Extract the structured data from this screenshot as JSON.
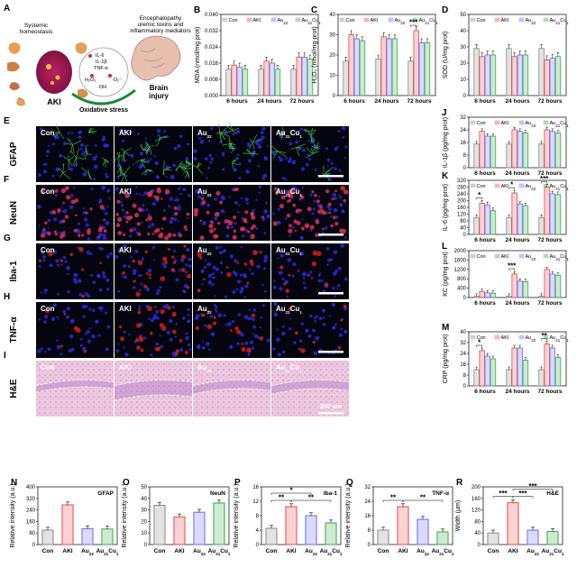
{
  "colors": {
    "Con": "#8a8a8a",
    "AKI": "#e84a4a",
    "Au22": "#6a6aff",
    "Au21Cu1": "#3aaa4a"
  },
  "groups": [
    "Con",
    "AKI",
    "Au22",
    "Au21Cu1"
  ],
  "panel_a": {
    "label": "A",
    "texts": [
      "Systemic",
      "homeostasis",
      "Encephalopathy",
      "uremic toxins and",
      "inflammatory mediators",
      "AKI",
      "Oxidative stress",
      "Brain",
      "injury",
      "IL-6",
      "IL-1β",
      "TNF-α",
      "H₂O₂",
      "·OH",
      "·O₂⁻"
    ]
  },
  "micro_panels": {
    "rows": [
      {
        "label": "E",
        "marker": "GFAP",
        "style": "gfap"
      },
      {
        "label": "F",
        "marker": "NeuN",
        "style": "neun"
      },
      {
        "label": "G",
        "marker": "Iba-1",
        "style": "iba"
      },
      {
        "label": "H",
        "marker": "TNF-α",
        "style": "tnf"
      },
      {
        "label": "I",
        "marker": "H&E",
        "style": "he"
      }
    ],
    "columns": [
      "Con",
      "AKI",
      "Au22",
      "Au21Cu1"
    ],
    "scale_label": "200 μm"
  },
  "chart_data": [
    {
      "id": "B",
      "type": "bar",
      "ylabel": "MDA (nmol/mg prot)",
      "categories": [
        "6 hours",
        "24 hours",
        "72 hours"
      ],
      "ylim": [
        0,
        0.04
      ],
      "yticks": [
        0,
        0.008,
        0.016,
        0.024,
        0.032,
        0.04
      ],
      "tick_labels": [
        "0.000",
        "0.008",
        "0.016",
        "0.024",
        "0.032",
        "0.040"
      ],
      "series": [
        {
          "name": "Con",
          "values": [
            0.013,
            0.013,
            0.013
          ]
        },
        {
          "name": "AKI",
          "values": [
            0.015,
            0.017,
            0.019
          ]
        },
        {
          "name": "Au22",
          "values": [
            0.014,
            0.016,
            0.019
          ]
        },
        {
          "name": "Au21Cu1",
          "values": [
            0.013,
            0.013,
            0.018
          ]
        }
      ],
      "sig": []
    },
    {
      "id": "C",
      "type": "bar",
      "ylabel": "H₂O₂ (nmol/mg prot)",
      "categories": [
        "6 hours",
        "24 hours",
        "72 hours"
      ],
      "ylim": [
        0,
        40
      ],
      "yticks": [
        0,
        10,
        20,
        30,
        40
      ],
      "tick_labels": [
        "0",
        "10",
        "20",
        "30",
        "40"
      ],
      "series": [
        {
          "name": "Con",
          "values": [
            17,
            18,
            17
          ]
        },
        {
          "name": "AKI",
          "values": [
            30,
            29,
            32
          ]
        },
        {
          "name": "Au22",
          "values": [
            28,
            28,
            26
          ]
        },
        {
          "name": "Au21Cu1",
          "values": [
            27,
            28,
            26
          ]
        }
      ],
      "sig": [
        {
          "cat": 2,
          "text": "***"
        }
      ]
    },
    {
      "id": "D",
      "type": "bar",
      "ylabel": "SOD (U/mg prot)",
      "categories": [
        "6 hours",
        "24 hours",
        "72 hours"
      ],
      "ylim": [
        0,
        50
      ],
      "yticks": [
        0,
        10,
        20,
        30,
        40,
        50
      ],
      "tick_labels": [
        "0",
        "10",
        "20",
        "30",
        "40",
        "50"
      ],
      "series": [
        {
          "name": "Con",
          "values": [
            29,
            29,
            29
          ]
        },
        {
          "name": "AKI",
          "values": [
            24,
            24,
            22
          ]
        },
        {
          "name": "Au22",
          "values": [
            25,
            25,
            23
          ]
        },
        {
          "name": "Au21Cu1",
          "values": [
            25,
            25,
            24
          ]
        }
      ],
      "sig": []
    },
    {
      "id": "J",
      "type": "bar",
      "ylabel": "IL-1β (pg/mg prot)",
      "categories": [
        "6 hours",
        "24 hours",
        "72 hours"
      ],
      "ylim": [
        0,
        32
      ],
      "yticks": [
        0,
        8,
        16,
        24,
        32
      ],
      "tick_labels": [
        "0",
        "8",
        "16",
        "24",
        "32"
      ],
      "series": [
        {
          "name": "Con",
          "values": [
            15,
            15,
            15
          ]
        },
        {
          "name": "AKI",
          "values": [
            23,
            24,
            24
          ]
        },
        {
          "name": "Au22",
          "values": [
            20,
            23,
            23
          ]
        },
        {
          "name": "Au21Cu1",
          "values": [
            20,
            22,
            22
          ]
        }
      ],
      "sig": []
    },
    {
      "id": "K",
      "type": "bar",
      "ylabel": "IL-6 (pg/mg prot)",
      "categories": [
        "6 hours",
        "24 hours",
        "72 hours"
      ],
      "ylim": [
        0,
        320
      ],
      "yticks": [
        0,
        40,
        80,
        120,
        160,
        200,
        240,
        280,
        320
      ],
      "tick_labels": [
        "0",
        "40",
        "80",
        "120",
        "160",
        "200",
        "240",
        "280",
        "320"
      ],
      "series": [
        {
          "name": "Con",
          "values": [
            100,
            100,
            100
          ]
        },
        {
          "name": "AKI",
          "values": [
            185,
            245,
            280
          ]
        },
        {
          "name": "Au22",
          "values": [
            175,
            180,
            240
          ]
        },
        {
          "name": "Au21Cu1",
          "values": [
            140,
            170,
            235
          ]
        }
      ],
      "sig": [
        {
          "cat": 0,
          "text": "*"
        },
        {
          "cat": 1,
          "text": "*"
        },
        {
          "cat": 2,
          "text": "***"
        }
      ]
    },
    {
      "id": "L",
      "type": "bar",
      "ylabel": "KC (pg/mg prot)",
      "categories": [
        "6 hours",
        "24 hours",
        "72 hours"
      ],
      "ylim": [
        0,
        2000
      ],
      "yticks": [
        0,
        400,
        800,
        1200,
        1600,
        2000
      ],
      "tick_labels": [
        "0",
        "400",
        "800",
        "1200",
        "1600",
        "2000"
      ],
      "series": [
        {
          "name": "Con",
          "values": [
            60,
            60,
            60
          ]
        },
        {
          "name": "AKI",
          "values": [
            260,
            1000,
            1200
          ]
        },
        {
          "name": "Au22",
          "values": [
            200,
            700,
            1000
          ]
        },
        {
          "name": "Au21Cu1",
          "values": [
            180,
            680,
            950
          ]
        }
      ],
      "sig": [
        {
          "cat": 1,
          "text": "***"
        }
      ]
    },
    {
      "id": "M",
      "type": "bar",
      "ylabel": "CRP (pg/mg prot)",
      "categories": [
        "6 hours",
        "24 hours",
        "72 hours"
      ],
      "ylim": [
        0,
        40
      ],
      "yticks": [
        0,
        8,
        16,
        24,
        32,
        40
      ],
      "tick_labels": [
        "0",
        "8",
        "16",
        "24",
        "32",
        "40"
      ],
      "series": [
        {
          "name": "Con",
          "values": [
            12,
            12,
            12
          ]
        },
        {
          "name": "AKI",
          "values": [
            26,
            28,
            31
          ]
        },
        {
          "name": "Au22",
          "values": [
            22,
            28,
            28
          ]
        },
        {
          "name": "Au21Cu1",
          "values": [
            20,
            19,
            21
          ]
        }
      ],
      "sig": [
        {
          "cat": 0,
          "text": "*"
        },
        {
          "cat": 2,
          "text": "**"
        }
      ]
    },
    {
      "id": "N",
      "type": "bar",
      "title": "GFAP",
      "ylabel": "Relative intensity (a.u.)",
      "categories": [
        "Con",
        "AKI",
        "Au22",
        "Au21Cu1"
      ],
      "ylim": [
        0,
        400
      ],
      "yticks": [
        0,
        80,
        160,
        240,
        320,
        400
      ],
      "tick_labels": [
        "0",
        "80",
        "160",
        "240",
        "320",
        "400"
      ],
      "values": [
        100,
        275,
        110,
        108
      ],
      "sig": []
    },
    {
      "id": "O",
      "type": "bar",
      "title": "NeuN",
      "ylabel": "Relative intensity (a.u.)",
      "categories": [
        "Con",
        "AKI",
        "Au22",
        "Au21Cu1"
      ],
      "ylim": [
        0,
        50
      ],
      "yticks": [
        0,
        10,
        20,
        30,
        40,
        50
      ],
      "tick_labels": [
        "0",
        "10",
        "20",
        "30",
        "40",
        "50"
      ],
      "values": [
        34,
        24,
        28,
        36
      ],
      "sig": []
    },
    {
      "id": "P",
      "type": "bar",
      "title": "Iba-1",
      "ylabel": "Relative intensity (a.u.)",
      "categories": [
        "Con",
        "AKI",
        "Au22",
        "Au21Cu1"
      ],
      "ylim": [
        0,
        16
      ],
      "yticks": [
        0,
        4,
        8,
        12,
        16
      ],
      "tick_labels": [
        "0",
        "4",
        "8",
        "12",
        "16"
      ],
      "values": [
        4.5,
        10.5,
        8,
        6
      ],
      "sig": [
        {
          "from": 0,
          "to": 1,
          "level": 0,
          "text": "**"
        },
        {
          "from": 1,
          "to": 3,
          "level": 0,
          "text": "**"
        },
        {
          "from": 0,
          "to": 2,
          "level": 1,
          "text": "*"
        }
      ]
    },
    {
      "id": "Q",
      "type": "bar",
      "title": "TNF-α",
      "ylabel": "Relative intensity (a.u.)",
      "categories": [
        "Con",
        "AKI",
        "Au22",
        "Au21Cu1"
      ],
      "ylim": [
        0,
        32
      ],
      "yticks": [
        0,
        8,
        16,
        24,
        32
      ],
      "tick_labels": [
        "0",
        "8",
        "16",
        "24",
        "32"
      ],
      "values": [
        8,
        21,
        14,
        7
      ],
      "sig": [
        {
          "from": 0,
          "to": 1,
          "level": 0,
          "text": "**"
        },
        {
          "from": 1,
          "to": 3,
          "level": 0,
          "text": "**"
        }
      ]
    },
    {
      "id": "R",
      "type": "bar",
      "title": "H&E",
      "ylabel": "Width (μm)",
      "categories": [
        "Con",
        "AKI",
        "Au22",
        "Au21Cu1"
      ],
      "ylim": [
        0,
        200
      ],
      "yticks": [
        0,
        40,
        80,
        120,
        160,
        200
      ],
      "tick_labels": [
        "0",
        "40",
        "80",
        "120",
        "160",
        "200"
      ],
      "values": [
        40,
        145,
        50,
        45
      ],
      "sig": [
        {
          "from": 0,
          "to": 1,
          "level": 0,
          "text": "***"
        },
        {
          "from": 1,
          "to": 2,
          "level": 0,
          "text": "***"
        },
        {
          "from": 1,
          "to": 3,
          "level": 1,
          "text": "***"
        }
      ]
    }
  ]
}
